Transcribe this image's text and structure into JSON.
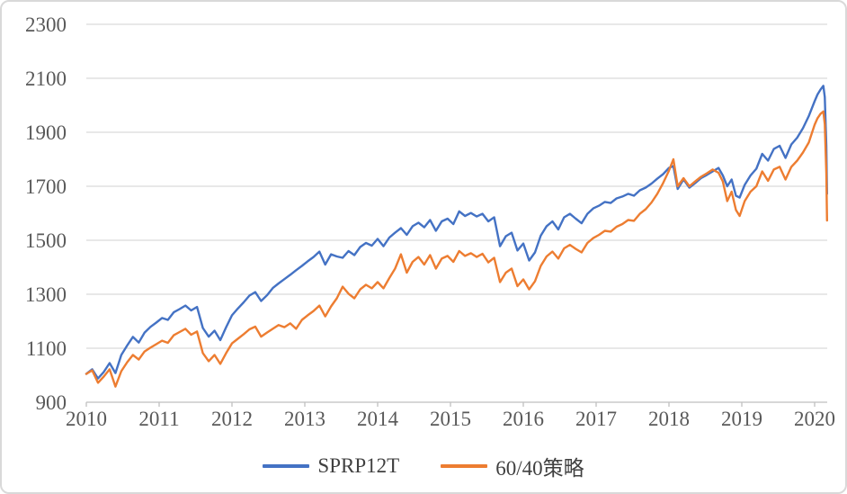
{
  "chart_data": {
    "type": "line",
    "title": "",
    "xlabel": "",
    "ylabel": "",
    "x_ticks": [
      2010,
      2011,
      2012,
      2013,
      2014,
      2015,
      2016,
      2017,
      2018,
      2019,
      2020
    ],
    "y_ticks": [
      900,
      1100,
      1300,
      1500,
      1700,
      1900,
      2100,
      2300
    ],
    "ylim": [
      900,
      2300
    ],
    "xlim": [
      2010,
      2020.2
    ],
    "grid": "horizontal",
    "legend_position": "bottom-center",
    "series": [
      {
        "name": "SPRP12T",
        "color": "#4472C4",
        "points": [
          [
            2010.0,
            1005
          ],
          [
            2010.08,
            1022
          ],
          [
            2010.16,
            988
          ],
          [
            2010.24,
            1012
          ],
          [
            2010.32,
            1045
          ],
          [
            2010.4,
            1008
          ],
          [
            2010.48,
            1075
          ],
          [
            2010.56,
            1110
          ],
          [
            2010.64,
            1142
          ],
          [
            2010.72,
            1121
          ],
          [
            2010.8,
            1158
          ],
          [
            2010.88,
            1179
          ],
          [
            2010.96,
            1195
          ],
          [
            2011.04,
            1212
          ],
          [
            2011.12,
            1205
          ],
          [
            2011.2,
            1233
          ],
          [
            2011.28,
            1245
          ],
          [
            2011.36,
            1258
          ],
          [
            2011.44,
            1240
          ],
          [
            2011.52,
            1253
          ],
          [
            2011.6,
            1175
          ],
          [
            2011.68,
            1143
          ],
          [
            2011.76,
            1165
          ],
          [
            2011.84,
            1130
          ],
          [
            2011.92,
            1178
          ],
          [
            2012.0,
            1222
          ],
          [
            2012.08,
            1247
          ],
          [
            2012.16,
            1270
          ],
          [
            2012.24,
            1295
          ],
          [
            2012.32,
            1308
          ],
          [
            2012.4,
            1275
          ],
          [
            2012.48,
            1296
          ],
          [
            2012.56,
            1323
          ],
          [
            2012.64,
            1340
          ],
          [
            2012.72,
            1356
          ],
          [
            2012.8,
            1372
          ],
          [
            2012.88,
            1389
          ],
          [
            2012.96,
            1405
          ],
          [
            2013.04,
            1422
          ],
          [
            2013.12,
            1438
          ],
          [
            2013.2,
            1458
          ],
          [
            2013.28,
            1410
          ],
          [
            2013.36,
            1448
          ],
          [
            2013.44,
            1440
          ],
          [
            2013.52,
            1435
          ],
          [
            2013.6,
            1460
          ],
          [
            2013.68,
            1445
          ],
          [
            2013.76,
            1475
          ],
          [
            2013.84,
            1490
          ],
          [
            2013.92,
            1480
          ],
          [
            2014.0,
            1505
          ],
          [
            2014.08,
            1478
          ],
          [
            2014.16,
            1510
          ],
          [
            2014.24,
            1528
          ],
          [
            2014.32,
            1545
          ],
          [
            2014.4,
            1520
          ],
          [
            2014.48,
            1552
          ],
          [
            2014.56,
            1565
          ],
          [
            2014.64,
            1548
          ],
          [
            2014.72,
            1575
          ],
          [
            2014.8,
            1535
          ],
          [
            2014.88,
            1570
          ],
          [
            2014.96,
            1580
          ],
          [
            2015.04,
            1560
          ],
          [
            2015.12,
            1607
          ],
          [
            2015.2,
            1590
          ],
          [
            2015.28,
            1601
          ],
          [
            2015.36,
            1588
          ],
          [
            2015.44,
            1598
          ],
          [
            2015.52,
            1570
          ],
          [
            2015.6,
            1585
          ],
          [
            2015.68,
            1478
          ],
          [
            2015.76,
            1515
          ],
          [
            2015.84,
            1528
          ],
          [
            2015.92,
            1462
          ],
          [
            2016.0,
            1488
          ],
          [
            2016.08,
            1425
          ],
          [
            2016.16,
            1455
          ],
          [
            2016.24,
            1517
          ],
          [
            2016.32,
            1552
          ],
          [
            2016.4,
            1570
          ],
          [
            2016.48,
            1540
          ],
          [
            2016.56,
            1585
          ],
          [
            2016.64,
            1598
          ],
          [
            2016.72,
            1580
          ],
          [
            2016.8,
            1563
          ],
          [
            2016.88,
            1598
          ],
          [
            2016.96,
            1618
          ],
          [
            2017.04,
            1628
          ],
          [
            2017.12,
            1642
          ],
          [
            2017.2,
            1638
          ],
          [
            2017.28,
            1655
          ],
          [
            2017.36,
            1662
          ],
          [
            2017.44,
            1672
          ],
          [
            2017.52,
            1665
          ],
          [
            2017.6,
            1685
          ],
          [
            2017.68,
            1695
          ],
          [
            2017.76,
            1710
          ],
          [
            2017.84,
            1728
          ],
          [
            2017.92,
            1745
          ],
          [
            2018.0,
            1768
          ],
          [
            2018.06,
            1775
          ],
          [
            2018.12,
            1690
          ],
          [
            2018.2,
            1725
          ],
          [
            2018.28,
            1695
          ],
          [
            2018.36,
            1712
          ],
          [
            2018.44,
            1730
          ],
          [
            2018.52,
            1742
          ],
          [
            2018.6,
            1755
          ],
          [
            2018.68,
            1768
          ],
          [
            2018.74,
            1740
          ],
          [
            2018.8,
            1700
          ],
          [
            2018.86,
            1725
          ],
          [
            2018.92,
            1665
          ],
          [
            2018.97,
            1658
          ],
          [
            2019.04,
            1705
          ],
          [
            2019.12,
            1740
          ],
          [
            2019.2,
            1765
          ],
          [
            2019.28,
            1820
          ],
          [
            2019.36,
            1795
          ],
          [
            2019.44,
            1838
          ],
          [
            2019.52,
            1850
          ],
          [
            2019.6,
            1805
          ],
          [
            2019.68,
            1855
          ],
          [
            2019.76,
            1880
          ],
          [
            2019.84,
            1915
          ],
          [
            2019.92,
            1960
          ],
          [
            2020.0,
            2015
          ],
          [
            2020.04,
            2040
          ],
          [
            2020.08,
            2058
          ],
          [
            2020.12,
            2072
          ],
          [
            2020.14,
            2030
          ],
          [
            2020.16,
            1850
          ],
          [
            2020.17,
            1672
          ]
        ]
      },
      {
        "name": "60/40策略",
        "color": "#ED7D31",
        "points": [
          [
            2010.0,
            1005
          ],
          [
            2010.08,
            1018
          ],
          [
            2010.16,
            972
          ],
          [
            2010.24,
            995
          ],
          [
            2010.32,
            1022
          ],
          [
            2010.4,
            958
          ],
          [
            2010.48,
            1015
          ],
          [
            2010.56,
            1048
          ],
          [
            2010.64,
            1075
          ],
          [
            2010.72,
            1058
          ],
          [
            2010.8,
            1088
          ],
          [
            2010.88,
            1102
          ],
          [
            2010.96,
            1115
          ],
          [
            2011.04,
            1128
          ],
          [
            2011.12,
            1120
          ],
          [
            2011.2,
            1148
          ],
          [
            2011.28,
            1160
          ],
          [
            2011.36,
            1172
          ],
          [
            2011.44,
            1150
          ],
          [
            2011.52,
            1162
          ],
          [
            2011.6,
            1082
          ],
          [
            2011.68,
            1052
          ],
          [
            2011.76,
            1075
          ],
          [
            2011.84,
            1042
          ],
          [
            2011.92,
            1082
          ],
          [
            2012.0,
            1118
          ],
          [
            2012.08,
            1135
          ],
          [
            2012.16,
            1152
          ],
          [
            2012.24,
            1170
          ],
          [
            2012.32,
            1180
          ],
          [
            2012.4,
            1143
          ],
          [
            2012.48,
            1158
          ],
          [
            2012.56,
            1172
          ],
          [
            2012.64,
            1186
          ],
          [
            2012.72,
            1178
          ],
          [
            2012.8,
            1192
          ],
          [
            2012.88,
            1172
          ],
          [
            2012.96,
            1205
          ],
          [
            2013.04,
            1222
          ],
          [
            2013.12,
            1238
          ],
          [
            2013.2,
            1258
          ],
          [
            2013.28,
            1218
          ],
          [
            2013.36,
            1255
          ],
          [
            2013.44,
            1285
          ],
          [
            2013.52,
            1328
          ],
          [
            2013.6,
            1302
          ],
          [
            2013.68,
            1285
          ],
          [
            2013.76,
            1318
          ],
          [
            2013.84,
            1335
          ],
          [
            2013.92,
            1322
          ],
          [
            2014.0,
            1345
          ],
          [
            2014.08,
            1322
          ],
          [
            2014.16,
            1360
          ],
          [
            2014.24,
            1395
          ],
          [
            2014.32,
            1448
          ],
          [
            2014.4,
            1380
          ],
          [
            2014.48,
            1420
          ],
          [
            2014.56,
            1438
          ],
          [
            2014.64,
            1410
          ],
          [
            2014.72,
            1445
          ],
          [
            2014.8,
            1395
          ],
          [
            2014.88,
            1432
          ],
          [
            2014.96,
            1442
          ],
          [
            2015.04,
            1420
          ],
          [
            2015.12,
            1460
          ],
          [
            2015.2,
            1442
          ],
          [
            2015.28,
            1452
          ],
          [
            2015.36,
            1438
          ],
          [
            2015.44,
            1450
          ],
          [
            2015.52,
            1418
          ],
          [
            2015.6,
            1435
          ],
          [
            2015.68,
            1345
          ],
          [
            2015.76,
            1380
          ],
          [
            2015.84,
            1395
          ],
          [
            2015.92,
            1330
          ],
          [
            2016.0,
            1355
          ],
          [
            2016.08,
            1318
          ],
          [
            2016.16,
            1348
          ],
          [
            2016.24,
            1405
          ],
          [
            2016.32,
            1440
          ],
          [
            2016.4,
            1458
          ],
          [
            2016.48,
            1432
          ],
          [
            2016.56,
            1470
          ],
          [
            2016.64,
            1483
          ],
          [
            2016.72,
            1468
          ],
          [
            2016.8,
            1455
          ],
          [
            2016.88,
            1490
          ],
          [
            2016.96,
            1508
          ],
          [
            2017.04,
            1520
          ],
          [
            2017.12,
            1535
          ],
          [
            2017.2,
            1532
          ],
          [
            2017.28,
            1550
          ],
          [
            2017.36,
            1560
          ],
          [
            2017.44,
            1575
          ],
          [
            2017.52,
            1572
          ],
          [
            2017.6,
            1598
          ],
          [
            2017.68,
            1615
          ],
          [
            2017.76,
            1640
          ],
          [
            2017.84,
            1672
          ],
          [
            2017.92,
            1712
          ],
          [
            2018.0,
            1758
          ],
          [
            2018.06,
            1800
          ],
          [
            2018.12,
            1700
          ],
          [
            2018.2,
            1730
          ],
          [
            2018.28,
            1700
          ],
          [
            2018.36,
            1718
          ],
          [
            2018.44,
            1735
          ],
          [
            2018.52,
            1748
          ],
          [
            2018.6,
            1762
          ],
          [
            2018.68,
            1750
          ],
          [
            2018.74,
            1718
          ],
          [
            2018.8,
            1645
          ],
          [
            2018.86,
            1680
          ],
          [
            2018.92,
            1612
          ],
          [
            2018.97,
            1590
          ],
          [
            2019.04,
            1645
          ],
          [
            2019.12,
            1680
          ],
          [
            2019.2,
            1700
          ],
          [
            2019.28,
            1755
          ],
          [
            2019.36,
            1720
          ],
          [
            2019.44,
            1762
          ],
          [
            2019.52,
            1772
          ],
          [
            2019.6,
            1725
          ],
          [
            2019.68,
            1772
          ],
          [
            2019.76,
            1795
          ],
          [
            2019.84,
            1825
          ],
          [
            2019.92,
            1862
          ],
          [
            2020.0,
            1928
          ],
          [
            2020.04,
            1952
          ],
          [
            2020.08,
            1968
          ],
          [
            2020.12,
            1977
          ],
          [
            2020.14,
            1930
          ],
          [
            2020.16,
            1750
          ],
          [
            2020.17,
            1573
          ]
        ]
      }
    ]
  },
  "style": {
    "background": "#FFFFFF",
    "border_color": "#D9D9D9",
    "gridline_color": "#D9D9D9",
    "axis_line_color": "#BFBFBF",
    "tick_label_color": "#595959",
    "legend_text_color": "#404040",
    "series_blue": "#4472C4",
    "series_orange": "#ED7D31"
  }
}
